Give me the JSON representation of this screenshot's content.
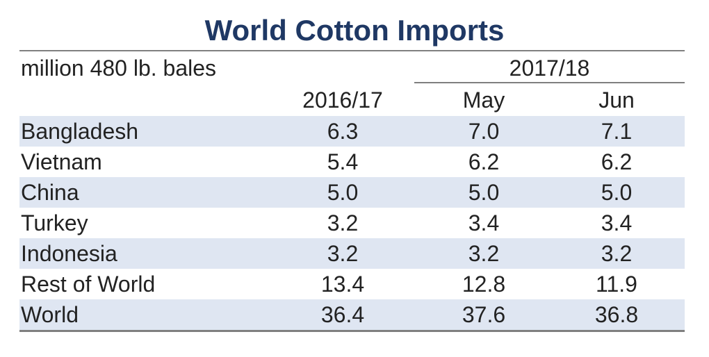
{
  "chart_data": {
    "type": "table",
    "title": "World Cotton Imports",
    "units": "million 480 lb. bales",
    "group_label": "2017/18",
    "columns": [
      "2016/17",
      "May",
      "Jun"
    ],
    "rows": [
      {
        "label": "Bangladesh",
        "values": [
          "6.3",
          "7.0",
          "7.1"
        ]
      },
      {
        "label": "Vietnam",
        "values": [
          "5.4",
          "6.2",
          "6.2"
        ]
      },
      {
        "label": "China",
        "values": [
          "5.0",
          "5.0",
          "5.0"
        ]
      },
      {
        "label": "Turkey",
        "values": [
          "3.2",
          "3.4",
          "3.4"
        ]
      },
      {
        "label": "Indonesia",
        "values": [
          "3.2",
          "3.2",
          "3.2"
        ]
      },
      {
        "label": "Rest of World",
        "values": [
          "13.4",
          "12.8",
          "11.9"
        ]
      },
      {
        "label": "World",
        "values": [
          "36.4",
          "37.6",
          "36.8"
        ]
      }
    ]
  },
  "colors": {
    "title": "#1f3864",
    "row_shade": "#dfe6f2",
    "rule": "#7f7f7f"
  }
}
